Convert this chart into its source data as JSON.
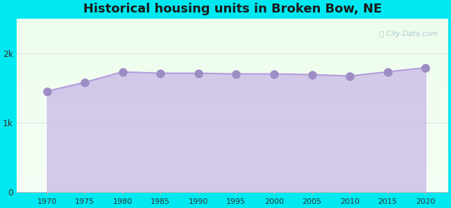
{
  "title": "Historical housing units in Broken Bow, NE",
  "years": [
    1970,
    1975,
    1980,
    1985,
    1990,
    1995,
    2000,
    2005,
    2010,
    2015,
    2020
  ],
  "values": [
    1450,
    1580,
    1730,
    1710,
    1710,
    1700,
    1700,
    1690,
    1670,
    1730,
    1790
  ],
  "ylim": [
    0,
    2500
  ],
  "yticks": [
    0,
    1000,
    2000
  ],
  "ytick_labels": [
    "0",
    "1k",
    "2k"
  ],
  "line_color": "#b39ddb",
  "fill_color": "#c9b8e8",
  "fill_alpha": 0.75,
  "marker_color": "#9e8cc5",
  "marker_size": 4,
  "bg_outer": "#00e8f0",
  "title_fontsize": 13,
  "title_color": "#1a1a1a",
  "watermark": "City-Data.com",
  "xlabel_fontsize": 8,
  "ylabel_fontsize": 9
}
